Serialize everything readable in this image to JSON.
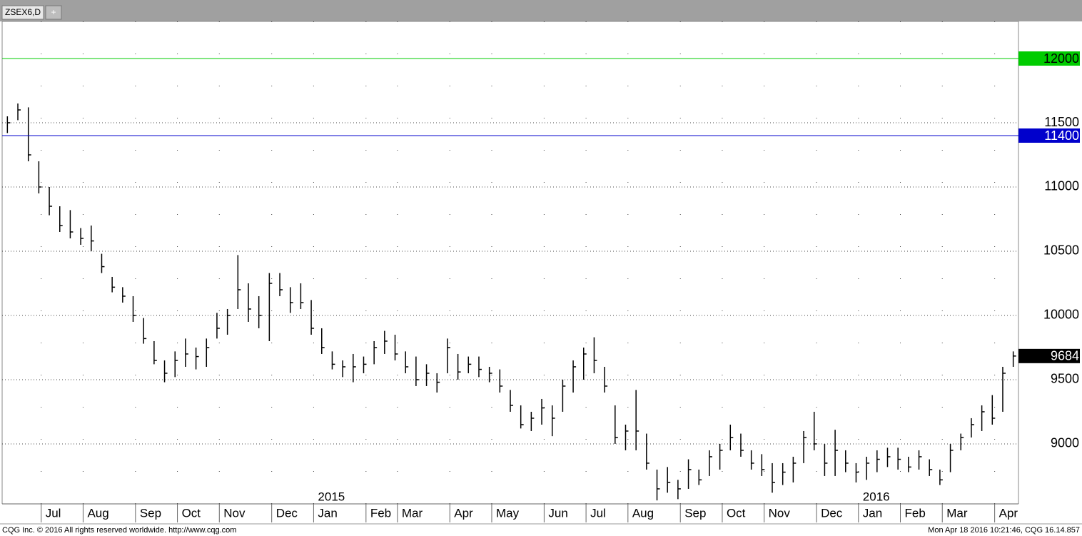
{
  "tab": {
    "symbol": "ZSEX6,D",
    "add": "+"
  },
  "footer": {
    "left": "CQG Inc. © 2016 All rights reserved worldwide. http://www.cqg.com",
    "right": "Mon Apr 18 2016 10:21:46, CQG 16.14.857"
  },
  "chart_data": {
    "type": "ohlc",
    "categories": [
      null,
      null,
      null,
      null,
      "Jul",
      null,
      null,
      null,
      "Aug",
      null,
      null,
      null,
      null,
      "Sep",
      null,
      null,
      null,
      "Oct",
      null,
      null,
      null,
      "Nov",
      null,
      null,
      null,
      null,
      "Dec",
      null,
      null,
      null,
      "Jan",
      null,
      null,
      null,
      null,
      "Feb",
      null,
      null,
      "Mar",
      null,
      null,
      null,
      null,
      "Apr",
      null,
      null,
      null,
      "May",
      null,
      null,
      null,
      null,
      "Jun",
      null,
      null,
      null,
      "Jul",
      null,
      null,
      null,
      "Aug",
      null,
      null,
      null,
      null,
      "Sep",
      null,
      null,
      null,
      "Oct",
      null,
      null,
      null,
      "Nov",
      null,
      null,
      null,
      null,
      "Dec",
      null,
      null,
      null,
      "Jan",
      null,
      null,
      null,
      "Feb",
      null,
      null,
      null,
      "Mar",
      null,
      null,
      null,
      null,
      "Apr",
      null
    ],
    "years": [
      {
        "text": "2015",
        "at": 30
      },
      {
        "text": "2016",
        "at": 82
      }
    ],
    "high": [
      11550,
      11650,
      11620,
      11200,
      11000,
      10850,
      10820,
      10680,
      10700,
      10480,
      10300,
      10220,
      10150,
      9980,
      9800,
      9650,
      9720,
      9820,
      9750,
      9820,
      10020,
      10050,
      10470,
      10250,
      10150,
      10330,
      10330,
      10220,
      10250,
      10120,
      9900,
      9720,
      9650,
      9700,
      9680,
      9800,
      9880,
      9850,
      9720,
      9680,
      9620,
      9550,
      9820,
      9700,
      9680,
      9680,
      9600,
      9580,
      9420,
      9300,
      9250,
      9350,
      9300,
      9500,
      9650,
      9750,
      9830,
      9600,
      9300,
      9150,
      9420,
      9080,
      8800,
      8820,
      8720,
      8880,
      8800,
      8950,
      9000,
      9150,
      9080,
      8950,
      8920,
      8850,
      8850,
      8900,
      9100,
      9250,
      9000,
      9110,
      8950,
      8850,
      8900,
      8950,
      8970,
      8970,
      8900,
      8950,
      8880,
      8800,
      9000,
      9080,
      9200,
      9300,
      9380,
      9600,
      9720
    ],
    "low": [
      11420,
      11520,
      11200,
      10950,
      10780,
      10650,
      10600,
      10550,
      10500,
      10330,
      10180,
      10100,
      9950,
      9780,
      9620,
      9480,
      9520,
      9600,
      9580,
      9600,
      9820,
      9850,
      10050,
      9950,
      9900,
      9800,
      10150,
      10020,
      10050,
      9850,
      9700,
      9580,
      9520,
      9480,
      9550,
      9620,
      9700,
      9650,
      9550,
      9450,
      9450,
      9400,
      9550,
      9500,
      9550,
      9520,
      9480,
      9400,
      9250,
      9120,
      9100,
      9150,
      9060,
      9250,
      9400,
      9500,
      9550,
      9400,
      9000,
      8950,
      8950,
      8800,
      8560,
      8620,
      8570,
      8650,
      8680,
      8750,
      8800,
      8950,
      8900,
      8800,
      8750,
      8620,
      8680,
      8700,
      8850,
      8950,
      8750,
      8750,
      8780,
      8700,
      8720,
      8780,
      8820,
      8800,
      8780,
      8800,
      8750,
      8680,
      8780,
      8950,
      9050,
      9100,
      9150,
      9250,
      9600
    ],
    "close": [
      11500,
      11600,
      11250,
      11000,
      10850,
      10700,
      10650,
      10600,
      10580,
      10380,
      10220,
      10150,
      10000,
      9820,
      9650,
      9550,
      9650,
      9700,
      9680,
      9750,
      9900,
      10000,
      10200,
      10050,
      10000,
      10250,
      10200,
      10100,
      10100,
      9900,
      9750,
      9620,
      9600,
      9600,
      9620,
      9750,
      9800,
      9700,
      9600,
      9500,
      9550,
      9480,
      9750,
      9560,
      9620,
      9580,
      9550,
      9450,
      9300,
      9150,
      9200,
      9280,
      9200,
      9450,
      9600,
      9700,
      9650,
      9450,
      9050,
      9100,
      9100,
      8850,
      8650,
      8700,
      8650,
      8800,
      8720,
      8900,
      8950,
      9050,
      8950,
      8850,
      8800,
      8700,
      8780,
      8850,
      9050,
      9000,
      8850,
      8950,
      8850,
      8780,
      8850,
      8880,
      8900,
      8880,
      8820,
      8900,
      8800,
      8720,
      8950,
      9050,
      9150,
      9250,
      9200,
      9550,
      9684
    ],
    "ylim": [
      8533,
      12289
    ],
    "yticks": [
      9000,
      9500,
      10000,
      10500,
      11000,
      11500
    ],
    "levels": [
      {
        "value": 12000,
        "color": "#00cc00"
      },
      {
        "value": 11400,
        "color": "#0000cc"
      }
    ],
    "last": 9684,
    "grid": true,
    "color": "#000000"
  }
}
